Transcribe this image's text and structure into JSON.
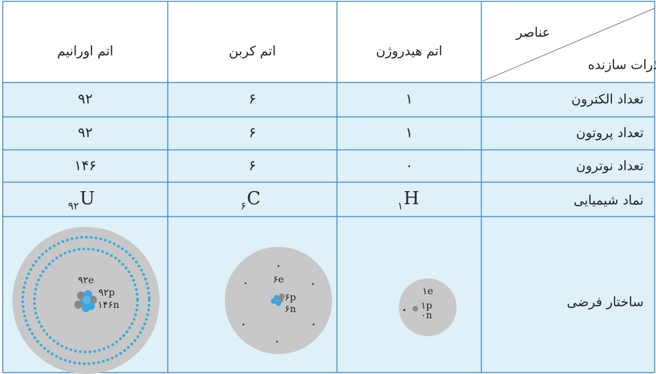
{
  "table": {
    "header": {
      "corner": {
        "top": "عناصر",
        "bottom": "ذرات سازنده"
      },
      "columns": [
        "اتم هیدروژن",
        "اتم کربن",
        "اتم اورانیم"
      ]
    },
    "rows": [
      {
        "label": "تعداد الکترون",
        "cells": [
          "۱",
          "۶",
          "۹۲"
        ]
      },
      {
        "label": "تعداد پروتون",
        "cells": [
          "۱",
          "۶",
          "۹۲"
        ]
      },
      {
        "label": "تعداد نوترون",
        "cells": [
          "۰",
          "۶",
          "۱۴۶"
        ]
      }
    ],
    "symbols": {
      "label": "نماد شیمیایی",
      "cells": [
        {
          "symbol": "H",
          "number": "۱"
        },
        {
          "symbol": "C",
          "number": "۶"
        },
        {
          "symbol": "U",
          "number": "۹۲"
        }
      ]
    },
    "structure": {
      "label": "ساختار فرضی",
      "atoms": [
        {
          "electrons": "۱e",
          "protons": "۱p",
          "neutrons": "۰n"
        },
        {
          "electrons": "۶e",
          "protons": "۶p",
          "neutrons": "۶n"
        },
        {
          "electrons": "۹۲e",
          "protons": "۹۲p",
          "neutrons": "۱۴۶n"
        }
      ]
    }
  }
}
